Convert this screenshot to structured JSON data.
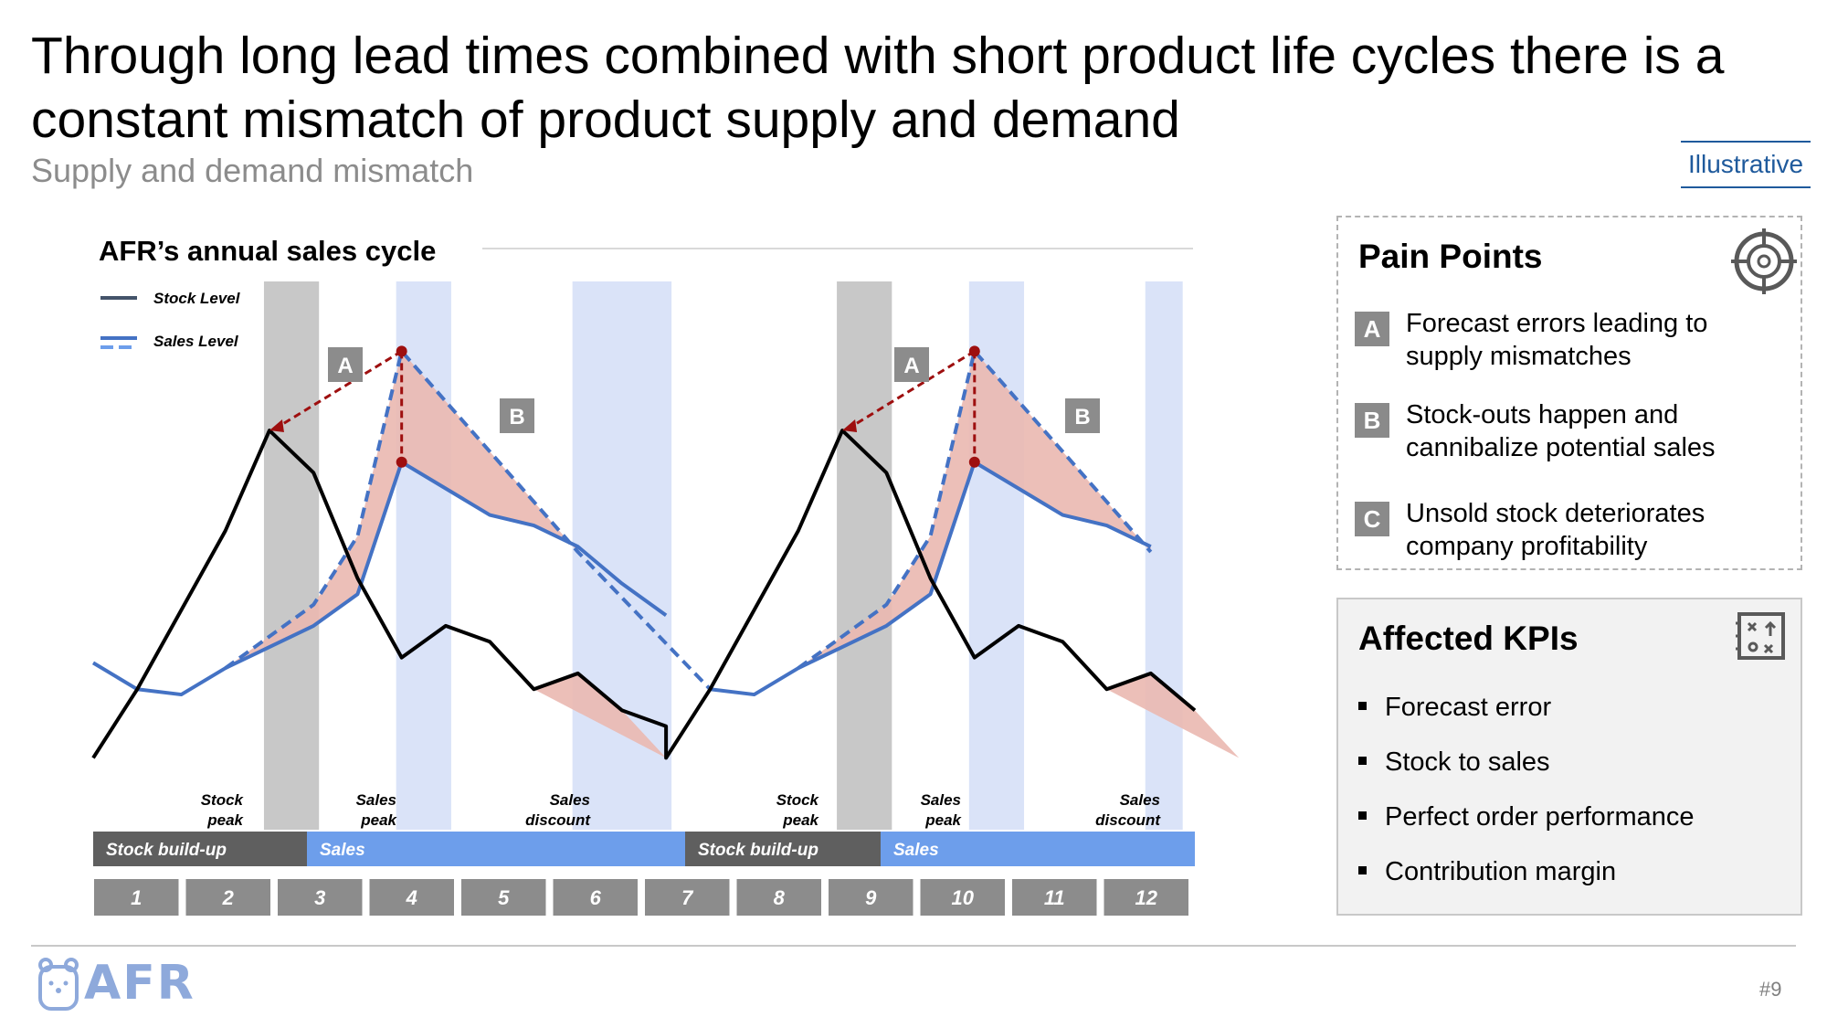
{
  "slide": {
    "title": "Through long lead times combined with short product life cycles there is a constant mismatch of product supply and demand",
    "subtitle": "Supply and demand mismatch",
    "tag": "Illustrative",
    "page_number": "#9",
    "logo_text": "AFR"
  },
  "chart_data": {
    "type": "line",
    "title": "AFR’s annual sales cycle",
    "x": [
      1,
      2,
      3,
      4,
      5,
      6,
      7,
      8,
      9,
      10,
      11,
      12
    ],
    "series": [
      {
        "name": "Stock Level",
        "color": "#000000",
        "style": "solid",
        "points": [
          [
            0.5,
            11
          ],
          [
            1.0,
            24
          ],
          [
            2.0,
            54
          ],
          [
            2.5,
            73
          ],
          [
            3.0,
            65
          ],
          [
            3.5,
            45
          ],
          [
            4.0,
            30
          ],
          [
            4.5,
            36
          ],
          [
            5.0,
            33
          ],
          [
            5.5,
            24
          ],
          [
            6.0,
            27
          ],
          [
            6.5,
            20
          ],
          [
            7.0,
            17
          ],
          [
            7.0,
            11
          ],
          [
            7.5,
            24
          ],
          [
            8.5,
            54
          ],
          [
            9.0,
            73
          ],
          [
            9.5,
            65
          ],
          [
            10.0,
            45
          ],
          [
            10.5,
            30
          ],
          [
            11.0,
            36
          ],
          [
            11.5,
            33
          ],
          [
            12.0,
            24
          ],
          [
            12.5,
            27
          ],
          [
            13.0,
            20
          ]
        ]
      },
      {
        "name": "Sales Level",
        "color": "#4472c4",
        "style": "solid",
        "points": [
          [
            0.5,
            29
          ],
          [
            1.0,
            24
          ],
          [
            1.5,
            23
          ],
          [
            2.0,
            28
          ],
          [
            2.5,
            32
          ],
          [
            3.0,
            36
          ],
          [
            3.5,
            42
          ],
          [
            4.0,
            67
          ],
          [
            4.5,
            62
          ],
          [
            5.0,
            57
          ],
          [
            5.5,
            55
          ],
          [
            6.0,
            51
          ],
          [
            6.5,
            44
          ],
          [
            7.0,
            38
          ],
          [
            7.5,
            24
          ],
          [
            8.0,
            23
          ],
          [
            8.5,
            28
          ],
          [
            9.0,
            32
          ],
          [
            9.5,
            36
          ],
          [
            10.0,
            42
          ],
          [
            10.5,
            67
          ],
          [
            11.0,
            62
          ],
          [
            11.5,
            57
          ],
          [
            12.0,
            55
          ],
          [
            12.5,
            51
          ]
        ]
      },
      {
        "name": "Sales Level (potential)",
        "color": "#4472c4",
        "style": "dashed",
        "points": [
          [
            2.0,
            28
          ],
          [
            2.5,
            34
          ],
          [
            3.0,
            40
          ],
          [
            3.5,
            53
          ],
          [
            4.0,
            88
          ],
          [
            6.0,
            50
          ],
          [
            7.5,
            24
          ],
          [
            8.5,
            28
          ],
          [
            9.0,
            34
          ],
          [
            9.5,
            40
          ],
          [
            10.0,
            53
          ],
          [
            10.5,
            88
          ],
          [
            12.5,
            50
          ]
        ]
      }
    ],
    "legend": [
      "Stock Level",
      "Sales Level"
    ],
    "markers": [
      "A",
      "B",
      "A",
      "B"
    ],
    "event_labels": [
      "Stock peak",
      "Sales peak",
      "Sales discount",
      "Stock peak",
      "Sales peak",
      "Sales discount"
    ],
    "phases": [
      "Stock build-up",
      "Sales",
      "Stock build-up",
      "Sales"
    ],
    "months": [
      "1",
      "2",
      "3",
      "4",
      "5",
      "6",
      "7",
      "8",
      "9",
      "10",
      "11",
      "12"
    ]
  },
  "pain_points": {
    "title": "Pain Points",
    "items": [
      {
        "badge": "A",
        "text": "Forecast errors leading to supply mismatches"
      },
      {
        "badge": "B",
        "text": "Stock-outs happen and cannibalize potential sales"
      },
      {
        "badge": "C",
        "text": "Unsold stock deteriorates company profitability"
      }
    ]
  },
  "kpis": {
    "title": "Affected KPIs",
    "items": [
      "Forecast error",
      "Stock to sales",
      "Perfect order performance",
      "Contribution margin"
    ]
  },
  "colors": {
    "stock": "#000000",
    "sales": "#4472c4",
    "gap_fill": "#eab8b0",
    "arrow": "#9e0f0f",
    "phase_stock": "#5f5f5f",
    "phase_sales": "#6d9eeb",
    "stock_band": "#c8c8c8",
    "sales_band": "#dae3f8",
    "month_box": "#8c8c8c"
  }
}
